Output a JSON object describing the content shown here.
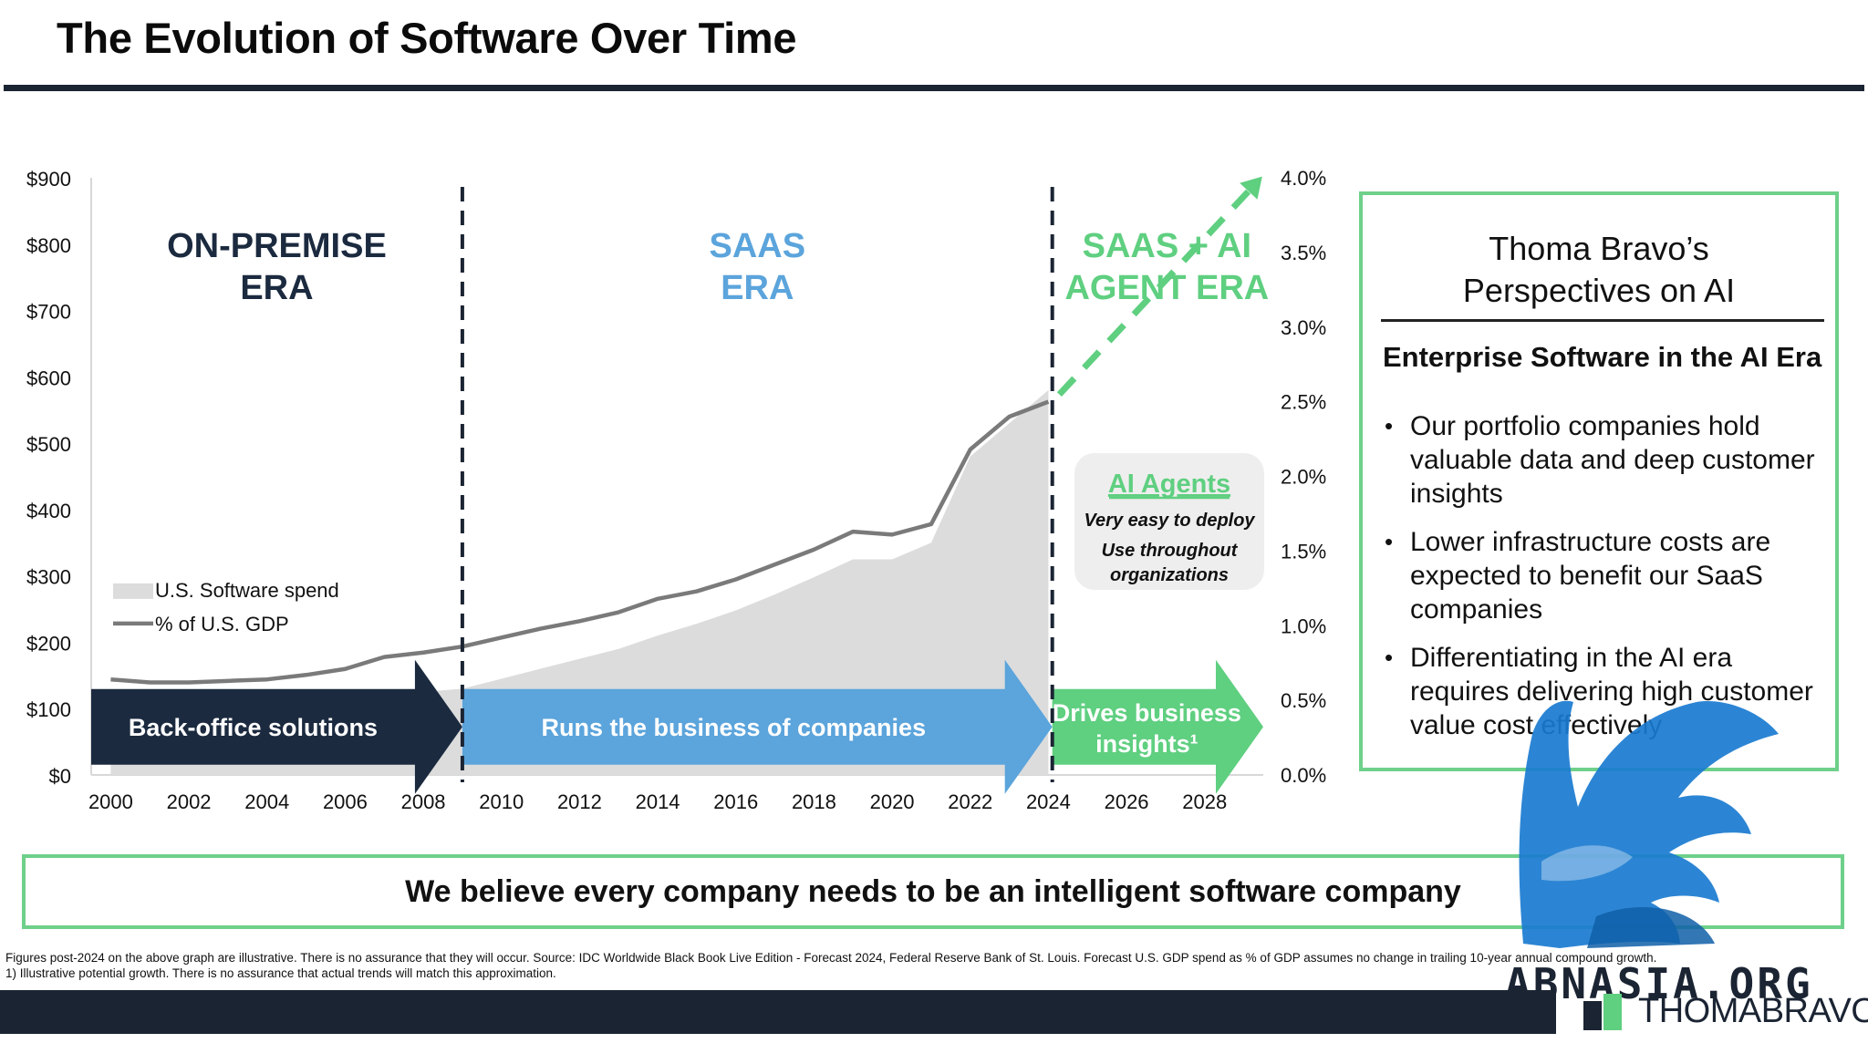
{
  "page": {
    "title": "The Evolution of Software Over Time",
    "belief": "We believe every company needs to be an intelligent software company",
    "footnote_1": "Figures post-2024 on the above graph are illustrative. There is no assurance that they will occur. Source: IDC Worldwide Black Book Live Edition - Forecast 2024, Federal Reserve Bank of St. Louis. Forecast U.S. GDP spend as % of GDP assumes no change in trailing 10-year annual compound growth.",
    "footnote_2": "1) Illustrative potential growth. There is no assurance that actual trends will match this approximation.",
    "brand": "THOMABRAVO",
    "watermark": "ABNASIA.ORG"
  },
  "side_panel": {
    "title_line1": "Thoma Bravo’s",
    "title_line2": "Perspectives on AI",
    "subtitle": "Enterprise Software in the AI Era",
    "bullets": [
      "Our portfolio companies hold valuable data and deep customer insights",
      "Lower infrastructure costs are expected to benefit our SaaS companies",
      "Differentiating in the AI era requires delivering high customer value cost effectively"
    ]
  },
  "chart_data": {
    "type": "area",
    "x": [
      2000,
      2001,
      2002,
      2003,
      2004,
      2005,
      2006,
      2007,
      2008,
      2009,
      2010,
      2011,
      2012,
      2013,
      2014,
      2015,
      2016,
      2017,
      2018,
      2019,
      2020,
      2021,
      2022,
      2023,
      2024
    ],
    "xlim": [
      1999.5,
      2029.5
    ],
    "x_ticks": [
      "2000",
      "2002",
      "2004",
      "2006",
      "2008",
      "2010",
      "2012",
      "2014",
      "2016",
      "2018",
      "2020",
      "2022",
      "2024",
      "2026",
      "2028"
    ],
    "left_axis": {
      "ylim": [
        0,
        900
      ],
      "ticks": [
        "$0",
        "$100",
        "$200",
        "$300",
        "$400",
        "$500",
        "$600",
        "$700",
        "$800",
        "$900"
      ]
    },
    "right_axis": {
      "ylim": [
        0,
        4.0
      ],
      "ticks": [
        "0.0%",
        "0.5%",
        "1.0%",
        "1.5%",
        "2.0%",
        "2.5%",
        "3.0%",
        "3.5%",
        "4.0%"
      ]
    },
    "series": [
      {
        "name": "U.S. Software spend",
        "axis": "left",
        "color": "#dcdcdc",
        "values": [
          100,
          102,
          104,
          106,
          108,
          112,
          116,
          120,
          125,
          130,
          145,
          160,
          175,
          190,
          210,
          228,
          248,
          272,
          298,
          325,
          325,
          350,
          480,
          530,
          580
        ]
      },
      {
        "name": "% of U.S. GDP",
        "axis": "right",
        "color": "#7a7a7a",
        "values": [
          0.64,
          0.62,
          0.62,
          0.63,
          0.64,
          0.67,
          0.71,
          0.79,
          0.82,
          0.86,
          0.92,
          0.98,
          1.03,
          1.09,
          1.18,
          1.23,
          1.31,
          1.41,
          1.51,
          1.63,
          1.61,
          1.68,
          2.18,
          2.4,
          2.5
        ]
      }
    ],
    "projection": {
      "label": "Illustrative potential growth",
      "axis": "right",
      "from": [
        2024,
        2.5
      ],
      "to": [
        2029.5,
        4.0
      ],
      "color": "#5fcf80"
    },
    "legend": [
      "U.S. Software spend",
      "% of U.S. GDP"
    ],
    "legend_position": "lower-left",
    "eras": [
      {
        "name_line1": "ON-PREMISE",
        "name_line2": "ERA",
        "color": "#1b2a3f",
        "start": 1999.5,
        "end": 2009,
        "arrow_label": "Back-office solutions",
        "arrow_label_line2": ""
      },
      {
        "name_line1": "SAAS",
        "name_line2": "ERA",
        "color": "#5ba4dc",
        "start": 2009,
        "end": 2024.1,
        "arrow_label": "Runs the business of companies",
        "arrow_label_line2": ""
      },
      {
        "name_line1": "SAAS + AI",
        "name_line2": "AGENT ERA",
        "color": "#5fcf80",
        "start": 2024.1,
        "end": 2029.5,
        "arrow_label": "Drives business",
        "arrow_label_line2": "insights¹"
      }
    ],
    "dividers": [
      2009,
      2024.1
    ],
    "callout": {
      "title": "AI Agents",
      "line1": "Very easy to deploy",
      "line2": "Use throughout",
      "line3": "organizations"
    }
  }
}
